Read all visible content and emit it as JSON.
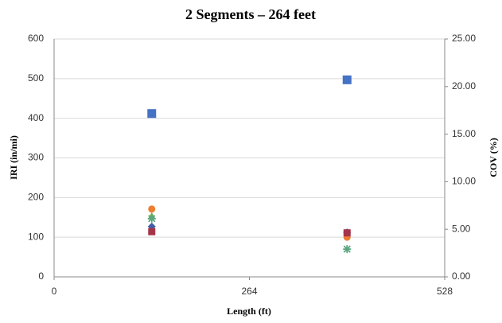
{
  "chart_data": {
    "type": "scatter",
    "title": "2 Segments – 264 feet",
    "x_label": "Length (ft)",
    "y_label": "IRI (in/mi)",
    "y2_label": "COV (%)",
    "xlim": [
      0,
      528
    ],
    "xticks": [
      0,
      264,
      528
    ],
    "ylim": [
      0,
      600
    ],
    "yticks": [
      0,
      100,
      200,
      300,
      400,
      500,
      600
    ],
    "y2lim": [
      0,
      25
    ],
    "y2ticks": [
      {
        "value": 0,
        "label": "0.00"
      },
      {
        "value": 5,
        "label": "5.00"
      },
      {
        "value": 10,
        "label": "10.00"
      },
      {
        "value": 15,
        "label": "15.00"
      },
      {
        "value": 20,
        "label": "20.00"
      },
      {
        "value": 25,
        "label": "25.00"
      }
    ],
    "grid": true,
    "x": [
      132,
      396
    ],
    "series": [
      {
        "color": "#4472c4",
        "marker": "square",
        "values": [
          412,
          497
        ]
      },
      {
        "color": "#3f5fa6",
        "marker": "diamond",
        "values": [
          127,
          112
        ]
      },
      {
        "color": "#ed7d31",
        "marker": "circle",
        "values": [
          171,
          100
        ]
      },
      {
        "color": "#70ad47",
        "marker": "triangle",
        "values": [
          153,
          null
        ]
      },
      {
        "color": "#5aa67e",
        "marker": "star",
        "values": [
          147,
          70
        ]
      },
      {
        "color": "#a5344a",
        "marker": "square-small",
        "values": [
          114,
          111
        ]
      }
    ]
  }
}
